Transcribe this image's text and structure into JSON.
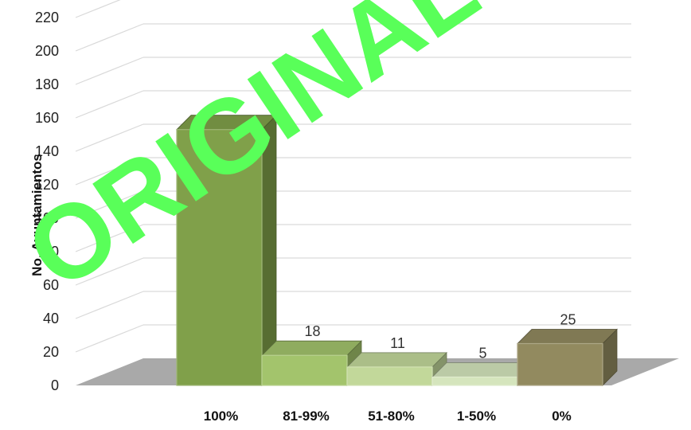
{
  "chart_data": {
    "type": "bar",
    "three_d": true,
    "categories": [
      "100%",
      "81-99%",
      "51-80%",
      "1-50%",
      "0%"
    ],
    "values": [
      153,
      18,
      11,
      5,
      25
    ],
    "series_colors": [
      "#80a04a",
      "#a3c46c",
      "#c2d89a",
      "#d5e5bd",
      "#928a5f"
    ],
    "title": "",
    "xlabel": "",
    "ylabel": "No. Ayuntamientos",
    "ylim": [
      0,
      220
    ],
    "yticks": [
      0,
      20,
      40,
      60,
      80,
      100,
      120,
      140,
      160,
      180,
      200,
      220
    ],
    "grid": true,
    "legend": "none"
  },
  "watermark": {
    "text": "ORIGINAL",
    "color": "#59ff59"
  }
}
